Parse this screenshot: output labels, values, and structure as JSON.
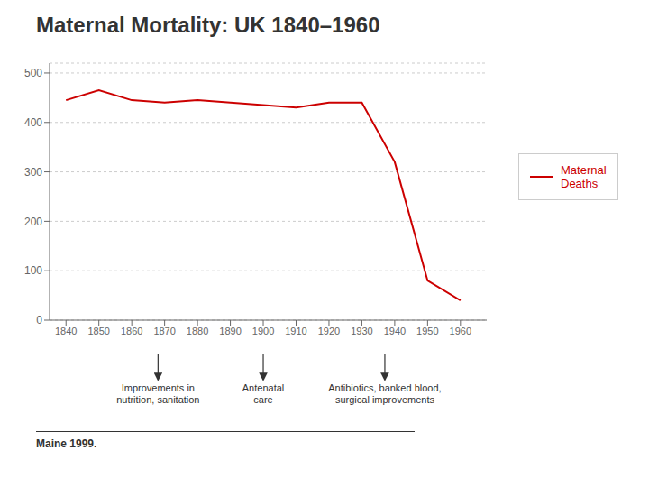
{
  "chart_data": {
    "type": "line",
    "title": "Maternal Mortality: UK 1840–1960",
    "x": [
      1840,
      1850,
      1860,
      1870,
      1880,
      1890,
      1900,
      1910,
      1920,
      1930,
      1940,
      1950,
      1960
    ],
    "series": [
      {
        "name": "Maternal\nDeaths",
        "color": "#cc0000",
        "values": [
          445,
          465,
          445,
          440,
          445,
          440,
          435,
          430,
          440,
          440,
          320,
          80,
          40
        ]
      }
    ],
    "xlim": [
      1835,
      1968
    ],
    "xticks": [
      1840,
      1850,
      1860,
      1870,
      1880,
      1890,
      1900,
      1910,
      1920,
      1930,
      1940,
      1950,
      1960
    ],
    "ylim": [
      0,
      520
    ],
    "yticks": [
      0,
      100,
      200,
      300,
      400,
      500
    ],
    "grid": true,
    "legend": "right",
    "annotations": [
      {
        "x": 1868,
        "text": "Improvements in\nnutrition, sanitation"
      },
      {
        "x": 1900,
        "text": "Antenatal\ncare"
      },
      {
        "x": 1937,
        "text": "Antibiotics, banked blood,\nsurgical improvements"
      }
    ],
    "footnote": "Maine 1999."
  }
}
